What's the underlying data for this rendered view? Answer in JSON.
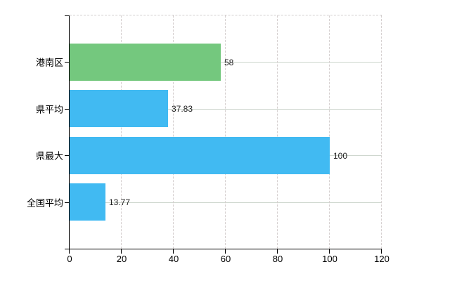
{
  "chart_data": {
    "type": "bar",
    "orientation": "horizontal",
    "categories": [
      "港南区",
      "県平均",
      "県最大",
      "全国平均"
    ],
    "values": [
      58,
      37.83,
      100,
      13.77
    ],
    "value_labels": [
      "58",
      "37.83",
      "100",
      "13.77"
    ],
    "bar_colors": [
      "#74c87e",
      "#41baf2",
      "#41baf2",
      "#41baf2"
    ],
    "xlim": [
      0,
      120
    ],
    "x_ticks": [
      0,
      20,
      40,
      60,
      80,
      100,
      120
    ],
    "x_tick_labels": [
      "0",
      "20",
      "40",
      "60",
      "80",
      "100",
      "120"
    ],
    "grid": "on",
    "legend": "none",
    "title": "",
    "axis_color": "#000000",
    "h_gridline_color": "#ccd5cc",
    "v_gridline_color": "#d5cfcf"
  }
}
